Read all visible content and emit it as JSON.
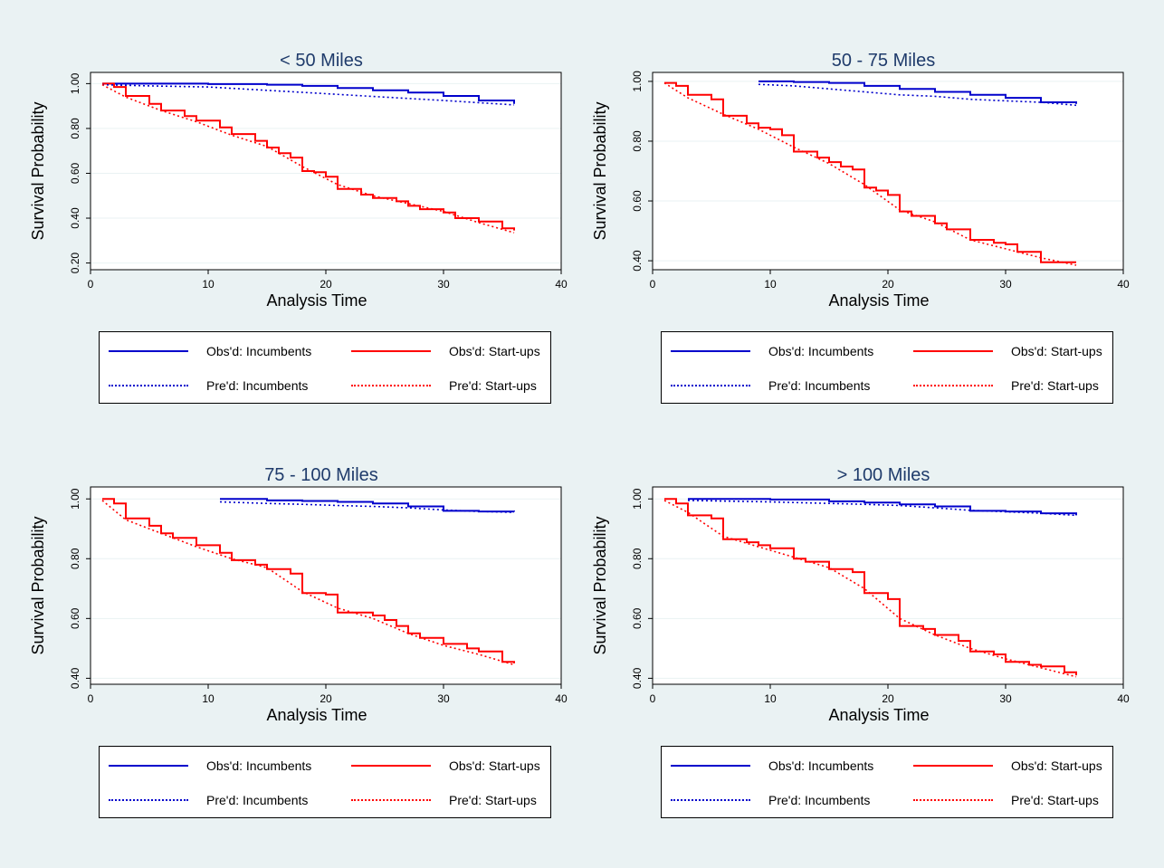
{
  "colors": {
    "background": "#eaf2f3",
    "title": "#1f3b6b",
    "incumbents": "#0000cc",
    "startups": "#ff0000",
    "grid": "#eaf2f3"
  },
  "legend": {
    "obs_incumbents": "Obs'd: Incumbents",
    "obs_startups": "Obs'd: Start-ups",
    "pred_incumbents": "Pre'd: Incumbents",
    "pred_startups": "Pre'd: Start-ups"
  },
  "chart_data": [
    {
      "type": "line",
      "title": "< 50 Miles",
      "xlabel": "Analysis Time",
      "ylabel": "Survival Probability",
      "xlim": [
        0,
        40
      ],
      "ylim": [
        0.17,
        1.05
      ],
      "xticks": [
        0,
        10,
        20,
        30,
        40
      ],
      "yticks": [
        0.2,
        0.4,
        0.6,
        0.8,
        1.0
      ],
      "ytick_labels": [
        "0.20",
        "0.40",
        "0.60",
        "0.80",
        "1.00"
      ],
      "grid": true,
      "legend_position": "bottom",
      "series": [
        {
          "name": "Obs'd: Incumbents",
          "style": "solid",
          "color": "#0000cc",
          "x": [
            1,
            10,
            15,
            18,
            21,
            24,
            27,
            30,
            33,
            36
          ],
          "y": [
            1.0,
            0.998,
            0.995,
            0.99,
            0.98,
            0.97,
            0.96,
            0.945,
            0.925,
            0.91
          ]
        },
        {
          "name": "Obs'd: Start-ups",
          "style": "solid",
          "color": "#ff0000",
          "x": [
            1,
            2,
            3,
            5,
            6,
            8,
            9,
            11,
            12,
            14,
            15,
            16,
            17,
            18,
            19,
            20,
            21,
            23,
            24,
            26,
            27,
            28,
            30,
            31,
            33,
            35,
            36
          ],
          "y": [
            1.0,
            0.985,
            0.945,
            0.91,
            0.88,
            0.855,
            0.835,
            0.805,
            0.775,
            0.745,
            0.715,
            0.69,
            0.67,
            0.61,
            0.605,
            0.585,
            0.53,
            0.505,
            0.49,
            0.475,
            0.455,
            0.44,
            0.425,
            0.4,
            0.385,
            0.355,
            0.345
          ]
        },
        {
          "name": "Pre'd: Incumbents",
          "style": "dotted",
          "color": "#0000cc",
          "x": [
            1,
            5,
            10,
            15,
            20,
            25,
            30,
            36
          ],
          "y": [
            0.995,
            0.99,
            0.985,
            0.97,
            0.955,
            0.94,
            0.925,
            0.905
          ]
        },
        {
          "name": "Pre'd: Start-ups",
          "style": "dotted",
          "color": "#ff0000",
          "x": [
            1,
            3,
            6,
            9,
            12,
            15,
            18,
            21,
            24,
            27,
            30,
            33,
            36
          ],
          "y": [
            0.995,
            0.94,
            0.88,
            0.83,
            0.77,
            0.72,
            0.63,
            0.55,
            0.5,
            0.465,
            0.43,
            0.38,
            0.335
          ]
        }
      ]
    },
    {
      "type": "line",
      "title": "50 - 75 Miles",
      "xlabel": "Analysis Time",
      "ylabel": "Survival Probability",
      "xlim": [
        0,
        40
      ],
      "ylim": [
        0.37,
        1.03
      ],
      "xticks": [
        0,
        10,
        20,
        30,
        40
      ],
      "yticks": [
        0.4,
        0.6,
        0.8,
        1.0
      ],
      "ytick_labels": [
        "0.40",
        "0.60",
        "0.80",
        "1.00"
      ],
      "grid": true,
      "legend_position": "bottom",
      "series": [
        {
          "name": "Obs'd: Incumbents",
          "style": "solid",
          "color": "#0000cc",
          "x": [
            9,
            12,
            15,
            18,
            21,
            24,
            27,
            30,
            33,
            36
          ],
          "y": [
            1.0,
            0.998,
            0.995,
            0.985,
            0.975,
            0.965,
            0.955,
            0.945,
            0.93,
            0.925
          ]
        },
        {
          "name": "Obs'd: Start-ups",
          "style": "solid",
          "color": "#ff0000",
          "x": [
            1,
            2,
            3,
            5,
            6,
            8,
            9,
            10,
            11,
            12,
            14,
            15,
            16,
            17,
            18,
            19,
            20,
            21,
            22,
            24,
            25,
            27,
            29,
            30,
            31,
            33,
            36
          ],
          "y": [
            0.995,
            0.985,
            0.955,
            0.94,
            0.885,
            0.86,
            0.845,
            0.84,
            0.82,
            0.765,
            0.745,
            0.73,
            0.715,
            0.705,
            0.645,
            0.635,
            0.62,
            0.565,
            0.55,
            0.525,
            0.505,
            0.47,
            0.46,
            0.455,
            0.43,
            0.395,
            0.395
          ]
        },
        {
          "name": "Pre'd: Incumbents",
          "style": "dotted",
          "color": "#0000cc",
          "x": [
            9,
            12,
            15,
            18,
            21,
            24,
            27,
            30,
            33,
            36
          ],
          "y": [
            0.99,
            0.985,
            0.975,
            0.965,
            0.955,
            0.95,
            0.94,
            0.935,
            0.93,
            0.92
          ]
        },
        {
          "name": "Pre'd: Start-ups",
          "style": "dotted",
          "color": "#ff0000",
          "x": [
            1,
            3,
            6,
            9,
            12,
            15,
            18,
            21,
            24,
            27,
            30,
            33,
            36
          ],
          "y": [
            0.995,
            0.945,
            0.89,
            0.84,
            0.78,
            0.725,
            0.655,
            0.57,
            0.53,
            0.47,
            0.44,
            0.41,
            0.385
          ]
        }
      ]
    },
    {
      "type": "line",
      "title": "75 - 100 Miles",
      "xlabel": "Analysis Time",
      "ylabel": "Survival Probability",
      "xlim": [
        0,
        40
      ],
      "ylim": [
        0.38,
        1.04
      ],
      "xticks": [
        0,
        10,
        20,
        30,
        40
      ],
      "yticks": [
        0.4,
        0.6,
        0.8,
        1.0
      ],
      "ytick_labels": [
        "0.40",
        "0.60",
        "0.80",
        "1.00"
      ],
      "grid": true,
      "legend_position": "bottom",
      "series": [
        {
          "name": "Obs'd: Incumbents",
          "style": "solid",
          "color": "#0000cc",
          "x": [
            11,
            15,
            18,
            21,
            24,
            27,
            30,
            33,
            36
          ],
          "y": [
            1.0,
            0.995,
            0.993,
            0.99,
            0.985,
            0.975,
            0.96,
            0.958,
            0.957
          ]
        },
        {
          "name": "Obs'd: Start-ups",
          "style": "solid",
          "color": "#ff0000",
          "x": [
            1,
            2,
            3,
            5,
            6,
            7,
            9,
            11,
            12,
            14,
            15,
            17,
            18,
            20,
            21,
            24,
            25,
            26,
            27,
            28,
            30,
            32,
            33,
            35,
            36
          ],
          "y": [
            1.0,
            0.985,
            0.935,
            0.91,
            0.885,
            0.87,
            0.845,
            0.82,
            0.795,
            0.78,
            0.765,
            0.75,
            0.685,
            0.68,
            0.62,
            0.61,
            0.595,
            0.575,
            0.55,
            0.535,
            0.515,
            0.5,
            0.49,
            0.455,
            0.45
          ]
        },
        {
          "name": "Pre'd: Incumbents",
          "style": "dotted",
          "color": "#0000cc",
          "x": [
            11,
            15,
            18,
            21,
            24,
            27,
            30,
            33,
            36
          ],
          "y": [
            0.99,
            0.985,
            0.982,
            0.978,
            0.975,
            0.97,
            0.963,
            0.958,
            0.955
          ]
        },
        {
          "name": "Pre'd: Start-ups",
          "style": "dotted",
          "color": "#ff0000",
          "x": [
            1,
            3,
            6,
            9,
            12,
            15,
            18,
            21,
            24,
            27,
            30,
            33,
            36
          ],
          "y": [
            0.995,
            0.93,
            0.885,
            0.84,
            0.8,
            0.77,
            0.69,
            0.635,
            0.6,
            0.55,
            0.51,
            0.48,
            0.445
          ]
        }
      ]
    },
    {
      "type": "line",
      "title": "> 100 Miles",
      "xlabel": "Analysis Time",
      "ylabel": "Survival Probability",
      "xlim": [
        0,
        40
      ],
      "ylim": [
        0.38,
        1.04
      ],
      "xticks": [
        0,
        10,
        20,
        30,
        40
      ],
      "yticks": [
        0.4,
        0.6,
        0.8,
        1.0
      ],
      "ytick_labels": [
        "0.40",
        "0.60",
        "0.80",
        "1.00"
      ],
      "grid": true,
      "legend_position": "bottom",
      "series": [
        {
          "name": "Obs'd: Incumbents",
          "style": "solid",
          "color": "#0000cc",
          "x": [
            3,
            10,
            15,
            18,
            21,
            24,
            27,
            30,
            33,
            36
          ],
          "y": [
            1.0,
            0.998,
            0.992,
            0.988,
            0.982,
            0.975,
            0.96,
            0.958,
            0.952,
            0.945
          ]
        },
        {
          "name": "Obs'd: Start-ups",
          "style": "solid",
          "color": "#ff0000",
          "x": [
            1,
            2,
            3,
            5,
            6,
            8,
            9,
            10,
            12,
            13,
            15,
            17,
            18,
            20,
            21,
            23,
            24,
            26,
            27,
            29,
            30,
            32,
            33,
            35,
            36
          ],
          "y": [
            1.0,
            0.985,
            0.945,
            0.935,
            0.865,
            0.855,
            0.845,
            0.835,
            0.8,
            0.79,
            0.765,
            0.755,
            0.685,
            0.665,
            0.575,
            0.565,
            0.545,
            0.525,
            0.49,
            0.48,
            0.455,
            0.445,
            0.44,
            0.42,
            0.41
          ]
        },
        {
          "name": "Pre'd: Incumbents",
          "style": "dotted",
          "color": "#0000cc",
          "x": [
            3,
            10,
            15,
            18,
            21,
            24,
            27,
            30,
            33,
            36
          ],
          "y": [
            0.995,
            0.99,
            0.985,
            0.982,
            0.978,
            0.97,
            0.962,
            0.957,
            0.952,
            0.945
          ]
        },
        {
          "name": "Pre'd: Start-ups",
          "style": "dotted",
          "color": "#ff0000",
          "x": [
            1,
            3,
            6,
            9,
            12,
            15,
            18,
            21,
            24,
            27,
            30,
            33,
            36
          ],
          "y": [
            0.995,
            0.955,
            0.875,
            0.84,
            0.805,
            0.77,
            0.7,
            0.6,
            0.545,
            0.5,
            0.465,
            0.435,
            0.405
          ]
        }
      ]
    }
  ]
}
